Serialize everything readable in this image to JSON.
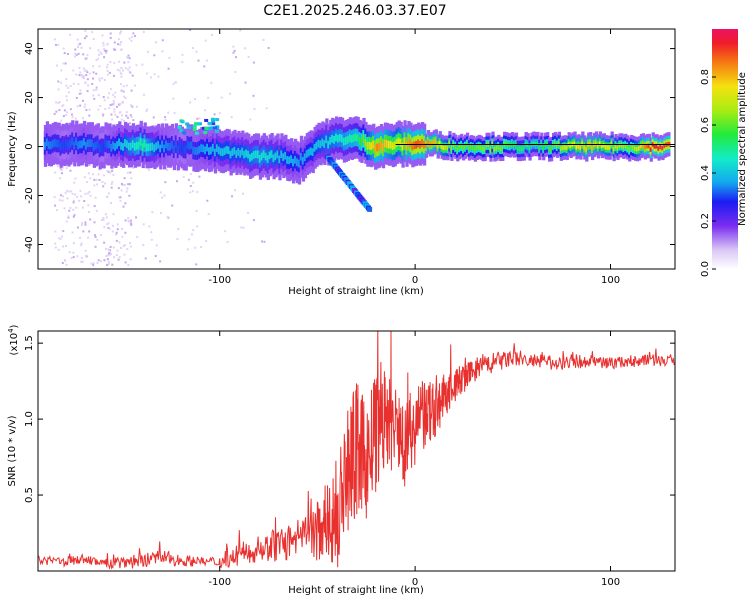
{
  "figure": {
    "title": "C2E1.2025.246.03.37.E07"
  },
  "chart_data": [
    {
      "type": "heatmap",
      "xlabel": "Height of straight line (km)",
      "ylabel": "Frequency (Hz)",
      "xlim": [
        -193,
        133
      ],
      "ylim": [
        -50,
        48
      ],
      "x_ticks": [
        -100,
        0,
        100
      ],
      "y_ticks": [
        -40,
        -20,
        0,
        20,
        40
      ],
      "reference_line_hz": 0,
      "ridge": [
        {
          "x": -190,
          "y": 1,
          "a": 0.35
        },
        {
          "x": -180,
          "y": 1,
          "a": 0.3
        },
        {
          "x": -170,
          "y": 1,
          "a": 0.35
        },
        {
          "x": -160,
          "y": 0,
          "a": 0.3
        },
        {
          "x": -150,
          "y": 1,
          "a": 0.4
        },
        {
          "x": -140,
          "y": 1,
          "a": 0.5
        },
        {
          "x": -130,
          "y": 0,
          "a": 0.35
        },
        {
          "x": -120,
          "y": 0,
          "a": 0.3
        },
        {
          "x": -110,
          "y": -1,
          "a": 0.35
        },
        {
          "x": -100,
          "y": -2,
          "a": 0.4
        },
        {
          "x": -90,
          "y": -3,
          "a": 0.4
        },
        {
          "x": -80,
          "y": -4,
          "a": 0.45
        },
        {
          "x": -70,
          "y": -4,
          "a": 0.4
        },
        {
          "x": -60,
          "y": -6,
          "a": 0.35
        },
        {
          "x": -50,
          "y": 1,
          "a": 0.4
        },
        {
          "x": -40,
          "y": 3,
          "a": 0.45
        },
        {
          "x": -30,
          "y": 3,
          "a": 0.5
        },
        {
          "x": -20,
          "y": 0,
          "a": 0.85
        },
        {
          "x": -10,
          "y": 1,
          "a": 0.7
        },
        {
          "x": 0,
          "y": 1,
          "a": 0.9
        },
        {
          "x": 10,
          "y": 1,
          "a": 0.8
        },
        {
          "x": 20,
          "y": 0,
          "a": 0.6
        },
        {
          "x": 30,
          "y": 0,
          "a": 0.6
        },
        {
          "x": 40,
          "y": 0,
          "a": 0.65
        },
        {
          "x": 50,
          "y": 0,
          "a": 0.55
        },
        {
          "x": 60,
          "y": 0,
          "a": 0.5
        },
        {
          "x": 70,
          "y": 0,
          "a": 0.6
        },
        {
          "x": 80,
          "y": 0,
          "a": 0.75
        },
        {
          "x": 90,
          "y": 0,
          "a": 0.8
        },
        {
          "x": 100,
          "y": 0,
          "a": 0.7
        },
        {
          "x": 110,
          "y": 0,
          "a": 0.6
        },
        {
          "x": 120,
          "y": 0,
          "a": 0.95
        },
        {
          "x": 130,
          "y": 0,
          "a": 0.9
        }
      ],
      "colorbar": {
        "label": "Normalized spectral amplitude",
        "range": [
          0,
          1
        ],
        "ticks": [
          0.0,
          0.2,
          0.4,
          0.6,
          0.8
        ],
        "tick_labels": [
          "0.0",
          "0.2",
          "0.4",
          "0.6",
          "0.8"
        ]
      },
      "colors": {
        "low": "#e8d8f8",
        "line": "#000000"
      }
    },
    {
      "type": "line",
      "xlabel": "Height of straight line (km)",
      "ylabel": "SNR (10 * v/v)",
      "y_multiplier": "(x10",
      "y_exponent": "4",
      "xlim": [
        -193,
        133
      ],
      "ylim": [
        0,
        1.58
      ],
      "x_ticks": [
        -100,
        0,
        100
      ],
      "y_ticks": [
        0.5,
        1.0,
        1.5
      ],
      "series": [
        {
          "color": "#e8312f",
          "x": [
            -193,
            -180,
            -170,
            -160,
            -150,
            -140,
            -130,
            -120,
            -110,
            -100,
            -90,
            -80,
            -70,
            -60,
            -50,
            -45,
            -40,
            -35,
            -30,
            -25,
            -20,
            -15,
            -10,
            -5,
            0,
            5,
            10,
            15,
            20,
            25,
            30,
            40,
            50,
            60,
            70,
            80,
            90,
            100,
            110,
            120,
            133
          ],
          "y": [
            0.07,
            0.06,
            0.08,
            0.05,
            0.06,
            0.07,
            0.09,
            0.07,
            0.06,
            0.06,
            0.1,
            0.14,
            0.18,
            0.18,
            0.26,
            0.35,
            0.32,
            0.65,
            0.8,
            0.72,
            0.9,
            1.0,
            0.9,
            0.85,
            0.95,
            1.02,
            1.05,
            1.15,
            1.22,
            1.27,
            1.32,
            1.37,
            1.4,
            1.38,
            1.37,
            1.38,
            1.38,
            1.37,
            1.38,
            1.39,
            1.38
          ],
          "noise": [
            0.03,
            0.03,
            0.03,
            0.03,
            0.05,
            0.05,
            0.05,
            0.04,
            0.03,
            0.04,
            0.07,
            0.08,
            0.12,
            0.12,
            0.2,
            0.25,
            0.35,
            0.4,
            0.45,
            0.4,
            0.4,
            0.35,
            0.3,
            0.3,
            0.25,
            0.25,
            0.2,
            0.15,
            0.12,
            0.1,
            0.08,
            0.07,
            0.06,
            0.05,
            0.05,
            0.05,
            0.04,
            0.04,
            0.04,
            0.04,
            0.04
          ]
        }
      ]
    }
  ]
}
